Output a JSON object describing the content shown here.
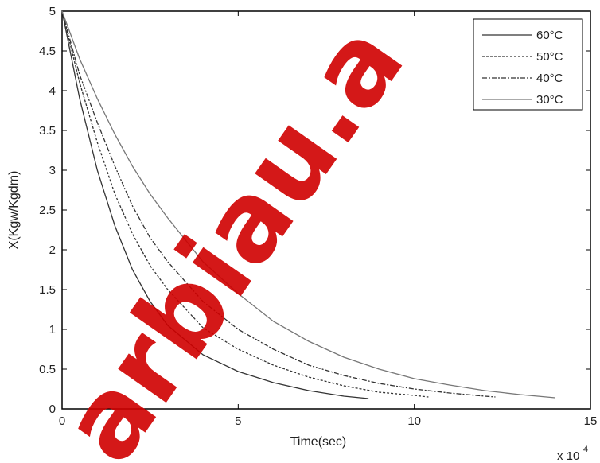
{
  "chart_data": {
    "type": "line",
    "title": "",
    "xlabel": "Time(sec)",
    "ylabel": "X(Kgw/Kgdm)",
    "x_multiplier_label": "x 10",
    "x_multiplier_exp": "4",
    "xlim": [
      0,
      15
    ],
    "ylim": [
      0,
      5
    ],
    "x_ticks": [
      "0",
      "5",
      "10",
      "15"
    ],
    "y_ticks": [
      "0",
      "0.5",
      "1",
      "1.5",
      "2",
      "2.5",
      "3",
      "3.5",
      "4",
      "4.5",
      "5"
    ],
    "grid": false,
    "legend_position": "top-right",
    "series": [
      {
        "name": "60°C",
        "color": "#333333",
        "dash": "",
        "x": [
          0,
          0.5,
          1,
          1.5,
          2,
          2.5,
          3,
          4,
          5,
          6,
          7,
          8,
          8.7
        ],
        "y": [
          5.0,
          3.9,
          3.0,
          2.3,
          1.75,
          1.35,
          1.05,
          0.68,
          0.47,
          0.33,
          0.23,
          0.16,
          0.13
        ]
      },
      {
        "name": "50°C",
        "color": "#333333",
        "dash": "3,2",
        "x": [
          0,
          0.5,
          1,
          1.5,
          2,
          2.5,
          3,
          4,
          5,
          6,
          7,
          8,
          9,
          10,
          10.4
        ],
        "y": [
          5.0,
          4.1,
          3.35,
          2.7,
          2.2,
          1.8,
          1.5,
          1.02,
          0.75,
          0.55,
          0.4,
          0.29,
          0.21,
          0.17,
          0.15
        ]
      },
      {
        "name": "40°C",
        "color": "#333333",
        "dash": "6,2,2,2",
        "x": [
          0,
          0.5,
          1,
          1.5,
          2,
          2.5,
          3,
          4,
          5,
          6,
          7,
          8,
          9,
          10,
          11,
          12,
          12.3
        ],
        "y": [
          5.0,
          4.2,
          3.6,
          3.05,
          2.55,
          2.15,
          1.85,
          1.35,
          1.0,
          0.75,
          0.55,
          0.42,
          0.32,
          0.25,
          0.2,
          0.16,
          0.15
        ]
      },
      {
        "name": "30°C",
        "color": "#777777",
        "dash": "",
        "x": [
          0,
          0.5,
          1,
          1.5,
          2,
          2.5,
          3,
          4,
          5,
          6,
          7,
          8,
          9,
          10,
          11,
          12,
          13,
          14
        ],
        "y": [
          5.0,
          4.4,
          3.9,
          3.45,
          3.05,
          2.7,
          2.4,
          1.85,
          1.45,
          1.1,
          0.85,
          0.65,
          0.5,
          0.38,
          0.3,
          0.23,
          0.18,
          0.14
        ]
      }
    ]
  },
  "watermark": {
    "text": "arbiau.a",
    "color": "#d00000"
  }
}
